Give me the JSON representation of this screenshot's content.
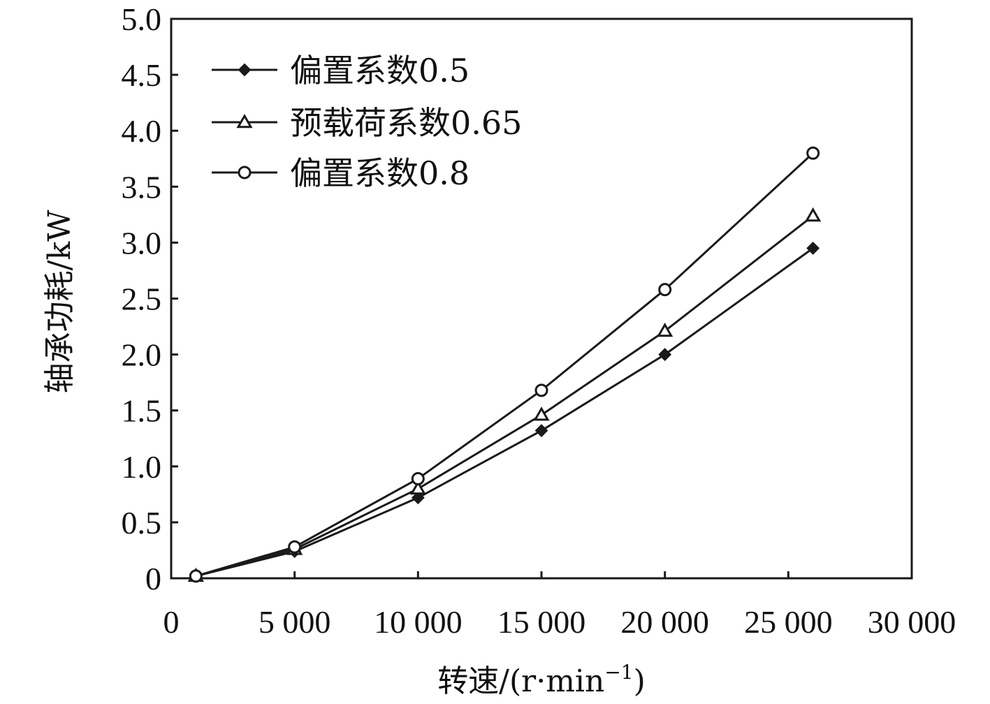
{
  "chart_data": {
    "type": "line",
    "xlabel": "转速/(r·min",
    "xlabel_sup": "−1",
    "xlabel_tail": ")",
    "ylabel": "轴承功耗/kW",
    "xlim": [
      0,
      30000
    ],
    "ylim": [
      0,
      5.0
    ],
    "x_ticks": [
      0,
      5000,
      10000,
      15000,
      20000,
      25000,
      30000
    ],
    "x_tick_labels": [
      "0",
      "5 000",
      "10 000",
      "15 000",
      "20 000",
      "25 000",
      "30 000"
    ],
    "y_ticks": [
      0,
      0.5,
      1.0,
      1.5,
      2.0,
      2.5,
      3.0,
      3.5,
      4.0,
      4.5,
      5.0
    ],
    "y_tick_labels": [
      "0",
      "0.5",
      "1.0",
      "1.5",
      "2.0",
      "2.5",
      "3.0",
      "3.5",
      "4.0",
      "4.5",
      "5.0"
    ],
    "grid": false,
    "legend_position": "top-left",
    "line_color": "#1a1a1a",
    "series": [
      {
        "name": "偏置系数0.5",
        "marker": "diamond",
        "x": [
          1000,
          5000,
          10000,
          15000,
          20000,
          26000
        ],
        "values": [
          0.02,
          0.24,
          0.72,
          1.32,
          2.0,
          2.95
        ]
      },
      {
        "name": "预载荷系数0.65",
        "marker": "triangle",
        "x": [
          1000,
          5000,
          10000,
          15000,
          20000,
          26000
        ],
        "values": [
          0.02,
          0.26,
          0.8,
          1.46,
          2.21,
          3.24
        ]
      },
      {
        "name": "偏置系数0.8",
        "marker": "circle",
        "x": [
          1000,
          5000,
          10000,
          15000,
          20000,
          26000
        ],
        "values": [
          0.02,
          0.28,
          0.89,
          1.68,
          2.58,
          3.8
        ]
      }
    ]
  }
}
